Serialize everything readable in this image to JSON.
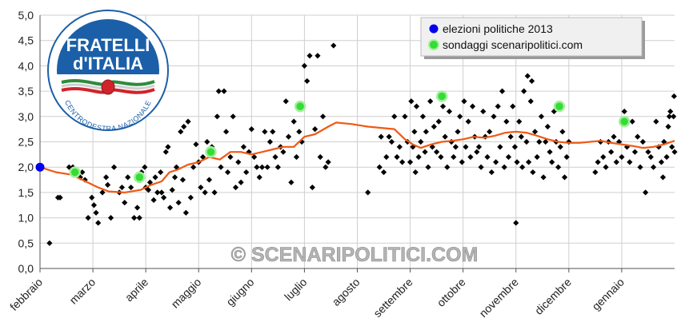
{
  "logo": {
    "line1": "FRATELLI",
    "line2": "d'ITALIA",
    "arc_text": "CENTRODESTRA NAZIONALE",
    "colors": {
      "blue": "#1b5fa8",
      "green": "#2e8b3c",
      "red": "#d2232a"
    }
  },
  "legend": {
    "items": [
      {
        "label": "elezioni politiche 2013",
        "color": "#0000ee"
      },
      {
        "label": "sondaggi scenaripolitici.com",
        "color": "#33dd33"
      }
    ]
  },
  "watermark": "© SCENARIPOLITICI.COM",
  "colors": {
    "trend": "#f05a14",
    "poll": "#000000",
    "grid": "#cfcfcf",
    "axis": "#555555"
  },
  "chart_data": {
    "type": "scatter",
    "title": "",
    "xlabel": "",
    "ylabel": "",
    "ylim": [
      0,
      5
    ],
    "yticks": [
      "0,0",
      "0,5",
      "1,0",
      "1,5",
      "2,0",
      "2,5",
      "3,0",
      "3,5",
      "4,0",
      "4,5",
      "5,0"
    ],
    "x_unit": "months since February 2013",
    "xlim": [
      0,
      12
    ],
    "months": [
      {
        "label": "febbraio",
        "x": 0
      },
      {
        "label": "marzo",
        "x": 1
      },
      {
        "label": "aprile",
        "x": 2
      },
      {
        "label": "maggio",
        "x": 3
      },
      {
        "label": "giugno",
        "x": 4
      },
      {
        "label": "luglio",
        "x": 5
      },
      {
        "label": "agosto",
        "x": 6
      },
      {
        "label": "settembre",
        "x": 7
      },
      {
        "label": "ottobre",
        "x": 8
      },
      {
        "label": "novembre",
        "x": 9
      },
      {
        "label": "dicembre",
        "x": 10
      },
      {
        "label": "gennaio",
        "x": 11
      }
    ],
    "grid": true,
    "legend_position": "top-right",
    "election": {
      "x": 0,
      "y": 2.0
    },
    "scenaripolitici": [
      [
        0.66,
        1.9
      ],
      [
        1.88,
        1.8
      ],
      [
        3.23,
        2.3
      ],
      [
        4.92,
        3.2
      ],
      [
        7.6,
        3.4
      ],
      [
        9.82,
        3.2
      ],
      [
        11.05,
        2.9
      ]
    ],
    "polls": [
      [
        0.18,
        0.5
      ],
      [
        0.34,
        1.4
      ],
      [
        0.38,
        1.4
      ],
      [
        0.55,
        2.0
      ],
      [
        0.62,
        2.0
      ],
      [
        0.76,
        1.8
      ],
      [
        0.8,
        1.9
      ],
      [
        0.85,
        1.75
      ],
      [
        0.91,
        1.0
      ],
      [
        0.98,
        1.4
      ],
      [
        1.02,
        1.25
      ],
      [
        1.06,
        1.1
      ],
      [
        1.1,
        0.9
      ],
      [
        1.18,
        1.5
      ],
      [
        1.25,
        1.8
      ],
      [
        1.28,
        1.65
      ],
      [
        1.34,
        1.0
      ],
      [
        1.4,
        2.0
      ],
      [
        1.5,
        1.5
      ],
      [
        1.55,
        1.6
      ],
      [
        1.6,
        1.3
      ],
      [
        1.66,
        1.8
      ],
      [
        1.72,
        1.6
      ],
      [
        1.78,
        1.0
      ],
      [
        1.84,
        1.2
      ],
      [
        1.88,
        1.0
      ],
      [
        1.92,
        1.9
      ],
      [
        1.98,
        2.0
      ],
      [
        2.0,
        1.6
      ],
      [
        2.05,
        1.55
      ],
      [
        2.08,
        1.7
      ],
      [
        2.15,
        1.35
      ],
      [
        2.18,
        1.8
      ],
      [
        2.22,
        1.5
      ],
      [
        2.28,
        1.9
      ],
      [
        2.3,
        1.5
      ],
      [
        2.34,
        1.4
      ],
      [
        2.38,
        2.3
      ],
      [
        2.42,
        2.4
      ],
      [
        2.46,
        1.2
      ],
      [
        2.5,
        1.55
      ],
      [
        2.55,
        1.8
      ],
      [
        2.58,
        2.0
      ],
      [
        2.62,
        1.3
      ],
      [
        2.66,
        2.7
      ],
      [
        2.7,
        1.75
      ],
      [
        2.72,
        2.8
      ],
      [
        2.76,
        1.1
      ],
      [
        2.8,
        2.9
      ],
      [
        2.85,
        1.4
      ],
      [
        2.9,
        2.0
      ],
      [
        2.95,
        2.45
      ],
      [
        3.0,
        2.1
      ],
      [
        3.04,
        1.6
      ],
      [
        3.08,
        2.2
      ],
      [
        3.12,
        1.5
      ],
      [
        3.16,
        2.5
      ],
      [
        3.2,
        1.75
      ],
      [
        3.25,
        2.4
      ],
      [
        3.3,
        1.5
      ],
      [
        3.35,
        3.0
      ],
      [
        3.38,
        3.5
      ],
      [
        3.42,
        2.0
      ],
      [
        3.48,
        3.5
      ],
      [
        3.52,
        2.7
      ],
      [
        3.55,
        1.9
      ],
      [
        3.6,
        2.2
      ],
      [
        3.65,
        3.0
      ],
      [
        3.7,
        1.6
      ],
      [
        3.75,
        2.1
      ],
      [
        3.8,
        1.7
      ],
      [
        3.85,
        2.4
      ],
      [
        3.9,
        1.9
      ],
      [
        3.95,
        2.3
      ],
      [
        4.0,
        2.75
      ],
      [
        4.05,
        2.2
      ],
      [
        4.1,
        2.0
      ],
      [
        4.15,
        1.8
      ],
      [
        4.2,
        2.0
      ],
      [
        4.25,
        2.7
      ],
      [
        4.3,
        2.0
      ],
      [
        4.35,
        2.5
      ],
      [
        4.4,
        2.7
      ],
      [
        4.45,
        2.2
      ],
      [
        4.5,
        2.0
      ],
      [
        4.55,
        2.4
      ],
      [
        4.6,
        2.3
      ],
      [
        4.65,
        3.3
      ],
      [
        4.7,
        2.6
      ],
      [
        4.75,
        1.7
      ],
      [
        4.8,
        2.9
      ],
      [
        4.85,
        2.2
      ],
      [
        4.9,
        2.7
      ],
      [
        4.95,
        2.5
      ],
      [
        5.0,
        4.0
      ],
      [
        5.05,
        3.7
      ],
      [
        5.1,
        4.2
      ],
      [
        5.15,
        1.6
      ],
      [
        5.2,
        2.75
      ],
      [
        5.25,
        4.2
      ],
      [
        5.3,
        2.2
      ],
      [
        5.35,
        3.0
      ],
      [
        5.4,
        2.0
      ],
      [
        5.45,
        2.1
      ],
      [
        5.55,
        4.4
      ],
      [
        6.2,
        1.5
      ],
      [
        6.42,
        2.0
      ],
      [
        6.45,
        2.6
      ],
      [
        6.5,
        1.9
      ],
      [
        6.55,
        2.2
      ],
      [
        6.6,
        2.6
      ],
      [
        6.65,
        2.5
      ],
      [
        6.7,
        3.0
      ],
      [
        6.75,
        2.2
      ],
      [
        6.8,
        2.4
      ],
      [
        6.85,
        2.1
      ],
      [
        6.9,
        3.0
      ],
      [
        6.95,
        2.5
      ],
      [
        7.0,
        2.1
      ],
      [
        7.02,
        3.3
      ],
      [
        7.05,
        2.4
      ],
      [
        7.08,
        2.7
      ],
      [
        7.1,
        1.9
      ],
      [
        7.12,
        3.2
      ],
      [
        7.16,
        2.2
      ],
      [
        7.2,
        2.5
      ],
      [
        7.24,
        3.0
      ],
      [
        7.28,
        2.3
      ],
      [
        7.3,
        2.7
      ],
      [
        7.34,
        2.0
      ],
      [
        7.38,
        3.3
      ],
      [
        7.42,
        2.4
      ],
      [
        7.45,
        2.8
      ],
      [
        7.5,
        2.3
      ],
      [
        7.54,
        2.9
      ],
      [
        7.58,
        2.2
      ],
      [
        7.62,
        3.2
      ],
      [
        7.66,
        2.6
      ],
      [
        7.7,
        2.0
      ],
      [
        7.74,
        3.1
      ],
      [
        7.78,
        2.5
      ],
      [
        7.82,
        2.2
      ],
      [
        7.86,
        2.4
      ],
      [
        7.9,
        2.7
      ],
      [
        7.94,
        3.0
      ],
      [
        7.98,
        2.1
      ],
      [
        8.02,
        3.3
      ],
      [
        8.05,
        2.4
      ],
      [
        8.1,
        2.9
      ],
      [
        8.14,
        2.2
      ],
      [
        8.18,
        3.2
      ],
      [
        8.22,
        2.6
      ],
      [
        8.26,
        2.3
      ],
      [
        8.3,
        2.4
      ],
      [
        8.34,
        2.0
      ],
      [
        8.38,
        3.1
      ],
      [
        8.42,
        2.6
      ],
      [
        8.46,
        2.2
      ],
      [
        8.5,
        2.7
      ],
      [
        8.54,
        1.9
      ],
      [
        8.58,
        3.0
      ],
      [
        8.62,
        2.1
      ],
      [
        8.66,
        3.2
      ],
      [
        8.7,
        2.4
      ],
      [
        8.74,
        3.5
      ],
      [
        8.78,
        2.0
      ],
      [
        8.82,
        2.9
      ],
      [
        8.86,
        2.2
      ],
      [
        8.9,
        2.6
      ],
      [
        8.94,
        3.2
      ],
      [
        8.98,
        2.4
      ],
      [
        9.02,
        2.1
      ],
      [
        9.06,
        2.9
      ],
      [
        9.1,
        2.6
      ],
      [
        9.12,
        2.0
      ],
      [
        9.15,
        3.5
      ],
      [
        9.2,
        2.5
      ],
      [
        9.24,
        2.1
      ],
      [
        9.28,
        3.3
      ],
      [
        9.32,
        1.9
      ],
      [
        9.36,
        2.7
      ],
      [
        9.4,
        2.2
      ],
      [
        9.44,
        2.5
      ],
      [
        9.48,
        3.0
      ],
      [
        9.52,
        1.8
      ],
      [
        9.56,
        2.5
      ],
      [
        9.6,
        2.8
      ],
      [
        9.64,
        2.3
      ],
      [
        9.68,
        2.1
      ],
      [
        9.72,
        3.1
      ],
      [
        9.76,
        2.5
      ],
      [
        9.8,
        2.0
      ],
      [
        9.84,
        2.4
      ],
      [
        9.88,
        2.7
      ],
      [
        9.92,
        1.8
      ],
      [
        9.96,
        2.2
      ],
      [
        10.0,
        2.5
      ],
      [
        9.3,
        3.7
      ],
      [
        9.22,
        3.8
      ],
      [
        9.0,
        0.9
      ],
      [
        10.5,
        1.9
      ],
      [
        10.55,
        2.1
      ],
      [
        10.6,
        2.5
      ],
      [
        10.65,
        2.2
      ],
      [
        10.7,
        2.0
      ],
      [
        10.75,
        2.5
      ],
      [
        10.8,
        2.3
      ],
      [
        10.85,
        2.6
      ],
      [
        10.9,
        2.1
      ],
      [
        10.95,
        2.5
      ],
      [
        11.0,
        2.2
      ],
      [
        11.05,
        3.1
      ],
      [
        11.1,
        2.4
      ],
      [
        11.15,
        2.1
      ],
      [
        11.2,
        2.9
      ],
      [
        11.25,
        2.3
      ],
      [
        11.3,
        2.6
      ],
      [
        11.35,
        2.0
      ],
      [
        11.4,
        2.5
      ],
      [
        11.45,
        1.5
      ],
      [
        11.5,
        2.3
      ],
      [
        11.55,
        2.2
      ],
      [
        11.6,
        2.0
      ],
      [
        11.65,
        2.9
      ],
      [
        11.7,
        2.4
      ],
      [
        11.75,
        2.1
      ],
      [
        11.8,
        2.5
      ],
      [
        11.85,
        2.2
      ],
      [
        11.9,
        3.0
      ],
      [
        11.95,
        2.4
      ],
      [
        12.0,
        2.3
      ],
      [
        11.92,
        3.1
      ],
      [
        11.98,
        3.0
      ],
      [
        11.99,
        3.4
      ],
      [
        11.88,
        2.8
      ],
      [
        11.78,
        1.8
      ]
    ],
    "trend": [
      [
        0,
        2.0
      ],
      [
        0.3,
        1.9
      ],
      [
        0.6,
        1.85
      ],
      [
        0.9,
        1.7
      ],
      [
        1.1,
        1.6
      ],
      [
        1.3,
        1.52
      ],
      [
        1.6,
        1.5
      ],
      [
        1.9,
        1.55
      ],
      [
        2.1,
        1.65
      ],
      [
        2.3,
        1.72
      ],
      [
        2.45,
        1.9
      ],
      [
        2.6,
        1.95
      ],
      [
        2.8,
        2.05
      ],
      [
        3.0,
        2.1
      ],
      [
        3.2,
        2.2
      ],
      [
        3.4,
        2.15
      ],
      [
        3.6,
        2.3
      ],
      [
        3.8,
        2.3
      ],
      [
        4.0,
        2.25
      ],
      [
        4.2,
        2.3
      ],
      [
        4.4,
        2.35
      ],
      [
        4.6,
        2.4
      ],
      [
        4.8,
        2.4
      ],
      [
        5.0,
        2.6
      ],
      [
        5.2,
        2.65
      ],
      [
        5.45,
        2.8
      ],
      [
        5.6,
        2.88
      ],
      [
        5.9,
        2.85
      ],
      [
        6.2,
        2.8
      ],
      [
        6.5,
        2.77
      ],
      [
        6.7,
        2.75
      ],
      [
        6.9,
        2.55
      ],
      [
        7.05,
        2.45
      ],
      [
        7.2,
        2.38
      ],
      [
        7.4,
        2.45
      ],
      [
        7.6,
        2.5
      ],
      [
        7.8,
        2.52
      ],
      [
        8.0,
        2.55
      ],
      [
        8.2,
        2.6
      ],
      [
        8.4,
        2.58
      ],
      [
        8.6,
        2.62
      ],
      [
        8.8,
        2.68
      ],
      [
        9.0,
        2.7
      ],
      [
        9.2,
        2.68
      ],
      [
        9.4,
        2.62
      ],
      [
        9.6,
        2.55
      ],
      [
        9.8,
        2.5
      ],
      [
        10.0,
        2.48
      ],
      [
        10.2,
        2.48
      ],
      [
        10.4,
        2.5
      ],
      [
        10.6,
        2.52
      ],
      [
        10.8,
        2.48
      ],
      [
        11.0,
        2.45
      ],
      [
        11.2,
        2.42
      ],
      [
        11.4,
        2.38
      ],
      [
        11.6,
        2.4
      ],
      [
        11.8,
        2.45
      ],
      [
        12.0,
        2.52
      ]
    ]
  }
}
